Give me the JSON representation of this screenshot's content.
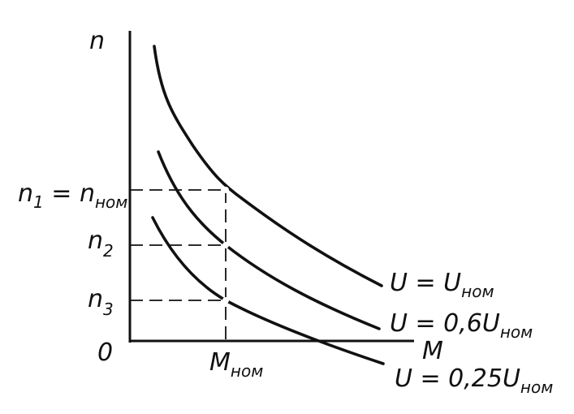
{
  "axes": {
    "y_label": "n",
    "x_label": "M",
    "origin_label": "0"
  },
  "y_ticks": [
    {
      "main": "n",
      "sub": "1",
      "eq": " = n",
      "eq_sub": "ном"
    },
    {
      "main": "n",
      "sub": "2"
    },
    {
      "main": "n",
      "sub": "3"
    }
  ],
  "x_ticks": [
    {
      "main": "M",
      "sub": "ном"
    }
  ],
  "curves": [
    {
      "label_main": "U = U",
      "label_sub": "ном"
    },
    {
      "label_main": "U = 0,6U",
      "label_sub": "ном"
    },
    {
      "label_main": "U = 0,25U",
      "label_sub": "ном"
    }
  ]
}
